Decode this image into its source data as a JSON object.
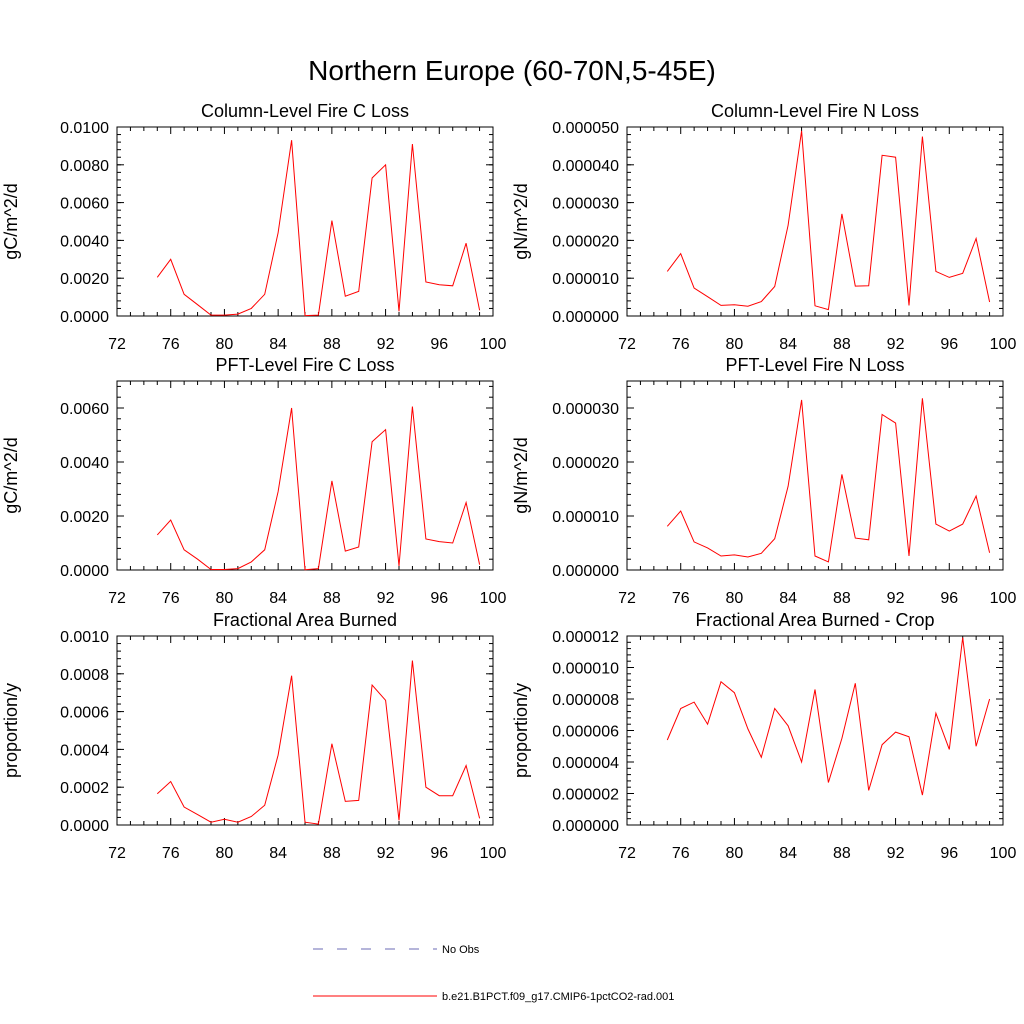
{
  "figure": {
    "title": "Northern Europe (60-70N,5-45E)"
  },
  "chart_data": [
    {
      "type": "line",
      "title": "Column-Level Fire C Loss",
      "xlabel": "",
      "ylabel": "gC/m^2/d",
      "xlim": [
        72,
        100
      ],
      "ylim": [
        0,
        0.01
      ],
      "xticks": [
        72,
        76,
        80,
        84,
        88,
        92,
        96,
        100
      ],
      "yticks": [
        0,
        0.002,
        0.004,
        0.006,
        0.008,
        0.01
      ],
      "ytick_labels": [
        "0.0000",
        "0.0020",
        "0.0040",
        "0.0060",
        "0.0080",
        "0.0100"
      ],
      "series": [
        {
          "color": "#ff0000",
          "x": [
            75,
            76,
            77,
            78,
            79,
            80,
            81,
            82,
            83,
            84,
            85,
            86,
            87,
            88,
            89,
            90,
            91,
            92,
            93,
            94,
            95,
            96,
            97,
            98,
            99
          ],
          "y": [
            0.00205,
            0.003,
            0.00115,
            0.0006,
            5e-05,
            5e-05,
            0.0001,
            0.0004,
            0.00115,
            0.0044,
            0.0093,
            2e-05,
            5e-05,
            0.00505,
            0.00105,
            0.0013,
            0.0073,
            0.008,
            0.00025,
            0.0091,
            0.0018,
            0.00165,
            0.0016,
            0.00385,
            0.0003
          ]
        }
      ]
    },
    {
      "type": "line",
      "title": "Column-Level Fire N Loss",
      "xlabel": "",
      "ylabel": "gN/m^2/d",
      "xlim": [
        72,
        100
      ],
      "ylim": [
        0,
        5e-05
      ],
      "xticks": [
        72,
        76,
        80,
        84,
        88,
        92,
        96,
        100
      ],
      "yticks": [
        0,
        1e-05,
        2e-05,
        3e-05,
        4e-05,
        5e-05
      ],
      "ytick_labels": [
        "0.000000",
        "0.000010",
        "0.000020",
        "0.000030",
        "0.000040",
        "0.000050"
      ],
      "series": [
        {
          "color": "#ff0000",
          "x": [
            75,
            76,
            77,
            78,
            79,
            80,
            81,
            82,
            83,
            84,
            85,
            86,
            87,
            88,
            89,
            90,
            91,
            92,
            93,
            94,
            95,
            96,
            97,
            98,
            99
          ],
          "y": [
            1.18e-05,
            1.65e-05,
            7.4e-06,
            5.1e-06,
            2.8e-06,
            3e-06,
            2.6e-06,
            3.8e-06,
            7.8e-06,
            2.4e-05,
            4.9e-05,
            2.7e-06,
            1.7e-06,
            2.7e-05,
            7.9e-06,
            8e-06,
            4.25e-05,
            4.2e-05,
            2.8e-06,
            4.75e-05,
            1.18e-05,
            1.02e-05,
            1.13e-05,
            2.05e-05,
            3.7e-06
          ]
        }
      ]
    },
    {
      "type": "line",
      "title": "PFT-Level Fire C Loss",
      "xlabel": "",
      "ylabel": "gC/m^2/d",
      "xlim": [
        72,
        100
      ],
      "ylim": [
        0,
        0.007
      ],
      "xticks": [
        72,
        76,
        80,
        84,
        88,
        92,
        96,
        100
      ],
      "yticks": [
        0,
        0.002,
        0.004,
        0.006
      ],
      "ytick_labels": [
        "0.0000",
        "0.0020",
        "0.0040",
        "0.0060"
      ],
      "series": [
        {
          "color": "#ff0000",
          "x": [
            75,
            76,
            77,
            78,
            79,
            80,
            81,
            82,
            83,
            84,
            85,
            86,
            87,
            88,
            89,
            90,
            91,
            92,
            93,
            94,
            95,
            96,
            97,
            98,
            99
          ],
          "y": [
            0.0013,
            0.00185,
            0.00075,
            0.0004,
            2e-05,
            2e-05,
            5e-05,
            0.0003,
            0.00075,
            0.0029,
            0.006,
            1e-05,
            5e-05,
            0.0033,
            0.0007,
            0.00085,
            0.00475,
            0.0052,
            0.00015,
            0.00605,
            0.00115,
            0.00105,
            0.001,
            0.0025,
            0.0002
          ]
        }
      ]
    },
    {
      "type": "line",
      "title": "PFT-Level Fire N Loss",
      "xlabel": "",
      "ylabel": "gN/m^2/d",
      "xlim": [
        72,
        100
      ],
      "ylim": [
        0,
        3.5e-05
      ],
      "xticks": [
        72,
        76,
        80,
        84,
        88,
        92,
        96,
        100
      ],
      "yticks": [
        0,
        1e-05,
        2e-05,
        3e-05
      ],
      "ytick_labels": [
        "0.000000",
        "0.000010",
        "0.000020",
        "0.000030"
      ],
      "series": [
        {
          "color": "#ff0000",
          "x": [
            75,
            76,
            77,
            78,
            79,
            80,
            81,
            82,
            83,
            84,
            85,
            86,
            87,
            88,
            89,
            90,
            91,
            92,
            93,
            94,
            95,
            96,
            97,
            98,
            99
          ],
          "y": [
            8.1e-06,
            1.09e-05,
            5.2e-06,
            4.1e-06,
            2.6e-06,
            2.8e-06,
            2.4e-06,
            3.1e-06,
            5.8e-06,
            1.55e-05,
            3.15e-05,
            2.6e-06,
            1.5e-06,
            1.77e-05,
            5.9e-06,
            5.6e-06,
            2.88e-05,
            2.72e-05,
            2.6e-06,
            3.18e-05,
            8.5e-06,
            7.2e-06,
            8.5e-06,
            1.37e-05,
            3.2e-06
          ]
        }
      ]
    },
    {
      "type": "line",
      "title": "Fractional Area Burned",
      "xlabel": "",
      "ylabel": "proportion/y",
      "xlim": [
        72,
        100
      ],
      "ylim": [
        0,
        0.001
      ],
      "xticks": [
        72,
        76,
        80,
        84,
        88,
        92,
        96,
        100
      ],
      "yticks": [
        0,
        0.0002,
        0.0004,
        0.0006,
        0.0008,
        0.001
      ],
      "ytick_labels": [
        "0.0000",
        "0.0002",
        "0.0004",
        "0.0006",
        "0.0008",
        "0.0010"
      ],
      "series": [
        {
          "color": "#ff0000",
          "x": [
            75,
            76,
            77,
            78,
            79,
            80,
            81,
            82,
            83,
            84,
            85,
            86,
            87,
            88,
            89,
            90,
            91,
            92,
            93,
            94,
            95,
            96,
            97,
            98,
            99
          ],
          "y": [
            0.000165,
            0.00023,
            9.5e-05,
            5.5e-05,
            1.5e-05,
            3e-05,
            1.5e-05,
            4.5e-05,
            0.000105,
            0.00037,
            0.00079,
            1.5e-05,
            5e-06,
            0.00043,
            0.000125,
            0.00013,
            0.00074,
            0.00066,
            2.5e-05,
            0.00087,
            0.0002,
            0.000155,
            0.000155,
            0.000315,
            3.5e-05
          ]
        }
      ]
    },
    {
      "type": "line",
      "title": "Fractional Area Burned - Crop",
      "xlabel": "",
      "ylabel": "proportion/y",
      "xlim": [
        72,
        100
      ],
      "ylim": [
        0,
        1.2e-05
      ],
      "xticks": [
        72,
        76,
        80,
        84,
        88,
        92,
        96,
        100
      ],
      "yticks": [
        0,
        2e-06,
        4e-06,
        6e-06,
        8e-06,
        1e-05,
        1.2e-05
      ],
      "ytick_labels": [
        "0.000000",
        "0.000002",
        "0.000004",
        "0.000006",
        "0.000008",
        "0.000010",
        "0.000012"
      ],
      "series": [
        {
          "color": "#ff0000",
          "x": [
            75,
            76,
            77,
            78,
            79,
            80,
            81,
            82,
            83,
            84,
            85,
            86,
            87,
            88,
            89,
            90,
            91,
            92,
            93,
            94,
            95,
            96,
            97,
            98,
            99
          ],
          "y": [
            5.4e-06,
            7.4e-06,
            7.8e-06,
            6.4e-06,
            9.1e-06,
            8.4e-06,
            6.1e-06,
            4.3e-06,
            7.4e-06,
            6.3e-06,
            4e-06,
            8.6e-06,
            2.7e-06,
            5.5e-06,
            9e-06,
            2.2e-06,
            5.1e-06,
            5.9e-06,
            5.6e-06,
            1.9e-06,
            7.1e-06,
            4.8e-06,
            1.19e-05,
            5e-06,
            8e-06
          ]
        }
      ]
    }
  ],
  "legend": {
    "items": [
      {
        "label": "No Obs",
        "color": "#6b6bb5",
        "dash": "10,14"
      },
      {
        "label": "b.e21.B1PCT.f09_g17.CMIP6-1pctCO2-rad.001",
        "color": "#ff0000",
        "dash": ""
      }
    ]
  }
}
